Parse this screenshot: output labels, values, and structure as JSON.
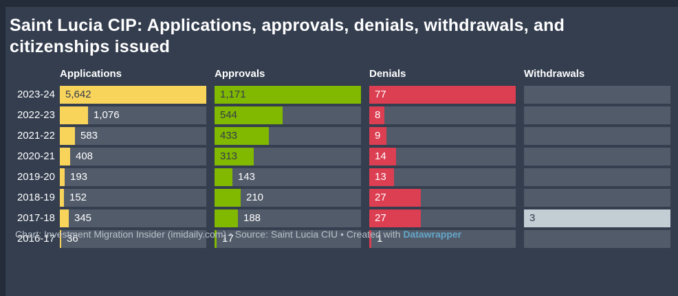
{
  "title": "Saint Lucia CIP: Applications, approvals, denials, withdrawals, and citizenships issued",
  "footer": {
    "text": "Chart: Investment Migration Insider (imidaily.com) • Source: Saint Lucia CIU • Created with ",
    "link_label": "Datawrapper"
  },
  "colors": {
    "background": "#343e4f",
    "frame": "#242c39",
    "track": "#525b6a",
    "applications": "#f9d45b",
    "approvals": "#81b800",
    "denials": "#dc3e52",
    "withdrawals": "#c2ced3",
    "outside_label": "#ffffff",
    "inside_label_dark": "#333d4d",
    "title_text": "#ffffff",
    "footer_text": "#b9c0c9",
    "link": "#64a7c9"
  },
  "chart_data": {
    "type": "bar",
    "orientation": "horizontal",
    "grid": false,
    "legend_position": "column-headers",
    "categories": [
      "2023-24",
      "2022-23",
      "2021-22",
      "2020-21",
      "2019-20",
      "2018-19",
      "2017-18",
      "2016-17"
    ],
    "series": [
      {
        "name": "Applications",
        "color": "#f9d45b",
        "inside_text_color": "#333d4d",
        "max": 5642,
        "values": [
          5642,
          1076,
          583,
          408,
          193,
          152,
          345,
          36
        ],
        "labels": [
          "5,642",
          "1,076",
          "583",
          "408",
          "193",
          "152",
          "345",
          "36"
        ],
        "label_inside": [
          true,
          false,
          false,
          false,
          false,
          false,
          false,
          false
        ]
      },
      {
        "name": "Approvals",
        "color": "#81b800",
        "inside_text_color": "#333d4d",
        "max": 1171,
        "values": [
          1171,
          544,
          433,
          313,
          143,
          210,
          188,
          17
        ],
        "labels": [
          "1,171",
          "544",
          "433",
          "313",
          "143",
          "210",
          "188",
          "17"
        ],
        "label_inside": [
          true,
          true,
          true,
          true,
          false,
          false,
          false,
          false
        ]
      },
      {
        "name": "Denials",
        "color": "#dc3e52",
        "inside_text_color": "#ffffff",
        "max": 77,
        "values": [
          77,
          8,
          9,
          14,
          13,
          27,
          27,
          1
        ],
        "labels": [
          "77",
          "8",
          "9",
          "14",
          "13",
          "27",
          "27",
          "1"
        ],
        "label_inside": [
          true,
          true,
          true,
          true,
          true,
          true,
          true,
          false
        ]
      },
      {
        "name": "Withdrawals",
        "color": "#c2ced3",
        "inside_text_color": "#333d4d",
        "max": 3,
        "values": [
          null,
          null,
          null,
          null,
          null,
          null,
          3,
          null
        ],
        "labels": [
          null,
          null,
          null,
          null,
          null,
          null,
          "3",
          null
        ],
        "label_inside": [
          null,
          null,
          null,
          null,
          null,
          null,
          true,
          null
        ]
      }
    ]
  }
}
